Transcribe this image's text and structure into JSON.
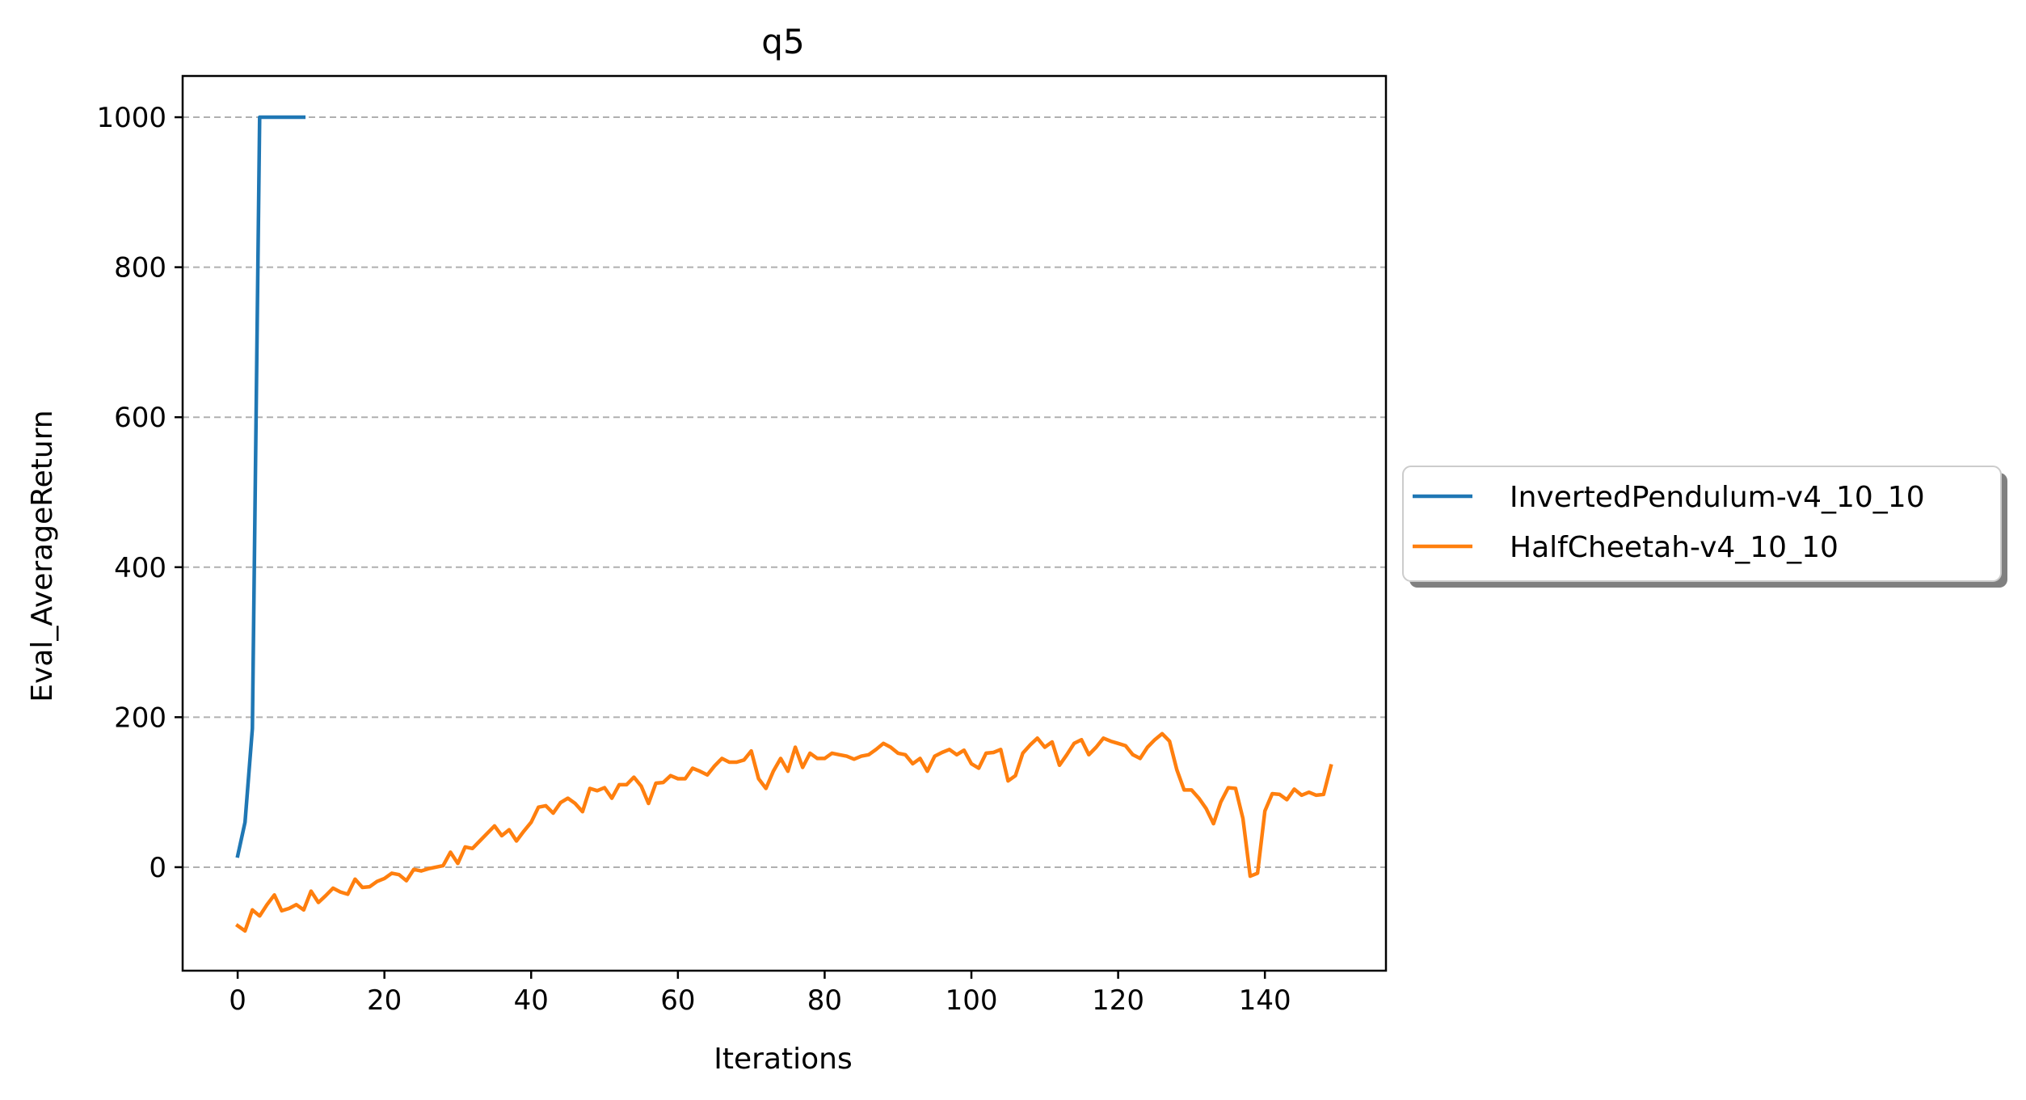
{
  "chart_data": {
    "type": "line",
    "title": "q5",
    "xlabel": "Iterations",
    "ylabel": "Eval_AverageReturn",
    "xlim": [
      -7.5,
      156.5
    ],
    "ylim": [
      -138,
      1055
    ],
    "xticks": [
      0,
      20,
      40,
      60,
      80,
      100,
      120,
      140
    ],
    "yticks": [
      0,
      200,
      400,
      600,
      800,
      1000
    ],
    "xtick_labels": [
      "0",
      "20",
      "40",
      "60",
      "80",
      "100",
      "120",
      "140"
    ],
    "ytick_labels": [
      "0",
      "200",
      "400",
      "600",
      "800",
      "1000"
    ],
    "grid": "y-axis dashed",
    "legend_position": "outside right, center",
    "series": [
      {
        "name": "InvertedPendulum-v4_10_10",
        "color": "#1f77b4",
        "x": [
          0,
          1,
          2,
          3,
          4,
          5,
          6,
          7,
          8,
          9
        ],
        "y": [
          15,
          60,
          185,
          1000,
          1000,
          1000,
          1000,
          1000,
          1000,
          1000
        ]
      },
      {
        "name": "HalfCheetah-v4_10_10",
        "color": "#ff7f0e",
        "x": [
          0,
          1,
          2,
          3,
          4,
          5,
          6,
          7,
          8,
          9,
          10,
          11,
          12,
          13,
          14,
          15,
          16,
          17,
          18,
          19,
          20,
          21,
          22,
          23,
          24,
          25,
          26,
          27,
          28,
          29,
          30,
          31,
          32,
          33,
          34,
          35,
          36,
          37,
          38,
          39,
          40,
          41,
          42,
          43,
          44,
          45,
          46,
          47,
          48,
          49,
          50,
          51,
          52,
          53,
          54,
          55,
          56,
          57,
          58,
          59,
          60,
          61,
          62,
          63,
          64,
          65,
          66,
          67,
          68,
          69,
          70,
          71,
          72,
          73,
          74,
          75,
          76,
          77,
          78,
          79,
          80,
          81,
          82,
          83,
          84,
          85,
          86,
          87,
          88,
          89,
          90,
          91,
          92,
          93,
          94,
          95,
          96,
          97,
          98,
          99,
          100,
          101,
          102,
          103,
          104,
          105,
          106,
          107,
          108,
          109,
          110,
          111,
          112,
          113,
          114,
          115,
          116,
          117,
          118,
          119,
          120,
          121,
          122,
          123,
          124,
          125,
          126,
          127,
          128,
          129,
          130,
          131,
          132,
          133,
          134,
          135,
          136,
          137,
          138,
          139,
          140,
          141,
          142,
          143,
          144,
          145,
          146,
          147,
          148,
          149
        ],
        "y": [
          -78,
          -85,
          -57,
          -65,
          -50,
          -37,
          -58,
          -55,
          -50,
          -57,
          -32,
          -47,
          -38,
          -28,
          -33,
          -36,
          -16,
          -27,
          -26,
          -19,
          -15,
          -8,
          -10,
          -18,
          -3,
          -5,
          -2,
          0,
          2,
          20,
          5,
          27,
          25,
          35,
          45,
          55,
          42,
          50,
          35,
          48,
          60,
          80,
          82,
          72,
          86,
          92,
          85,
          74,
          105,
          102,
          106,
          92,
          110,
          110,
          120,
          108,
          85,
          112,
          113,
          122,
          118,
          118,
          132,
          128,
          123,
          135,
          145,
          140,
          140,
          143,
          155,
          118,
          105,
          128,
          145,
          128,
          160,
          133,
          152,
          145,
          145,
          152,
          150,
          148,
          144,
          148,
          150,
          157,
          165,
          160,
          152,
          150,
          138,
          145,
          128,
          148,
          153,
          157,
          150,
          156,
          138,
          132,
          152,
          153,
          157,
          115,
          122,
          152,
          163,
          172,
          160,
          167,
          136,
          150,
          165,
          170,
          150,
          160,
          172,
          168,
          165,
          162,
          150,
          145,
          160,
          170,
          178,
          168,
          130,
          103,
          103,
          92,
          78,
          58,
          87,
          106,
          105,
          65,
          -12,
          -8,
          75,
          98,
          97,
          90,
          104,
          96,
          100,
          96,
          97,
          135
        ]
      }
    ]
  }
}
